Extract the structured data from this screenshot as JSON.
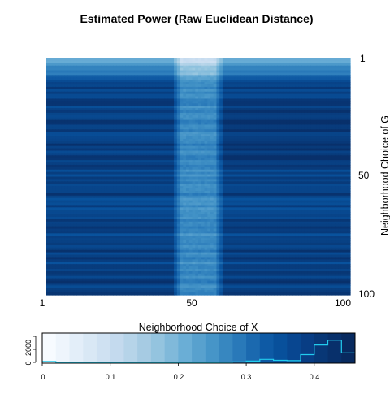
{
  "chart_data": [
    {
      "type": "heatmap",
      "title": "Estimated Power (Raw Euclidean Distance)",
      "xlabel": "Neighborhood Choice of X",
      "ylabel": "Neighborhood Choice of G",
      "x_ticks": [
        "1",
        "50",
        "100"
      ],
      "y_ticks": [
        "1",
        "50",
        "100"
      ],
      "x_range": [
        1,
        100
      ],
      "y_range": [
        1,
        100
      ],
      "y_direction": "top-to-bottom",
      "colormap": "Blues",
      "value_range": [
        0,
        0.46
      ],
      "bright_band_x": [
        45,
        56
      ],
      "description_values": {
        "background_power": 0.43,
        "band_power": 0.28,
        "top_rows_power": 0.15
      }
    },
    {
      "type": "histogram",
      "role": "color key",
      "x_ticks": [
        "0",
        "0.1",
        "0.2",
        "0.3",
        "0.4"
      ],
      "y_ticks": [
        "0",
        "2000"
      ],
      "xlim": [
        0,
        0.46
      ],
      "bin_edges": [
        0,
        0.02,
        0.04,
        0.06,
        0.08,
        0.1,
        0.12,
        0.14,
        0.16,
        0.18,
        0.2,
        0.22,
        0.24,
        0.26,
        0.28,
        0.3,
        0.32,
        0.34,
        0.36,
        0.38,
        0.4,
        0.42,
        0.44,
        0.46
      ],
      "counts": [
        150,
        0,
        0,
        0,
        0,
        0,
        0,
        0,
        0,
        0,
        0,
        0,
        0,
        30,
        80,
        200,
        450,
        300,
        250,
        1150,
        2600,
        3300,
        1400
      ],
      "colors": [
        "#f7fbff",
        "#eef5fc",
        "#e3eef9",
        "#d9e8f5",
        "#cfe1f2",
        "#c4daee",
        "#b6d4e9",
        "#a6cbe3",
        "#94c4df",
        "#80b9da",
        "#6aaed6",
        "#58a1ce",
        "#4695c8",
        "#3787c0",
        "#2979b9",
        "#1b69af",
        "#0e5aa5",
        "#08509b",
        "#084690",
        "#083d84",
        "#083776",
        "#08306b",
        "#082a5f"
      ],
      "line_color": "#22ccee"
    }
  ]
}
